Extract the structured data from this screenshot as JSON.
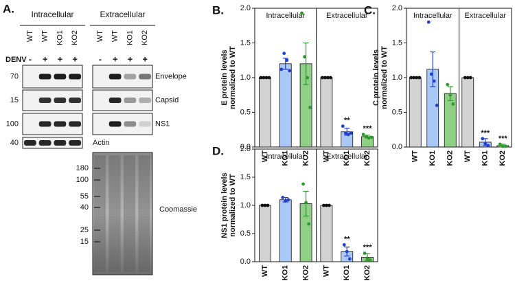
{
  "blot": {
    "panel_label": "A.",
    "groups": [
      {
        "name": "Intracellular",
        "lanes": [
          "WT",
          "WT",
          "KO1",
          "KO2"
        ]
      },
      {
        "name": "Extracellular",
        "lanes": [
          "WT",
          "WT",
          "KO1",
          "KO2"
        ]
      }
    ],
    "treatment": {
      "name": "DENV",
      "signs": [
        "-",
        "+",
        "+",
        "+"
      ]
    },
    "rows": [
      {
        "marker": "70",
        "name": "Envelope"
      },
      {
        "marker": "15",
        "name": "Capsid"
      },
      {
        "marker": "100",
        "name": "NS1"
      },
      {
        "marker": "40",
        "name": "Actin"
      }
    ],
    "stain": {
      "name": "Coomassie",
      "markers": [
        "180",
        "100",
        "55",
        "40",
        "25",
        "15"
      ]
    }
  },
  "chart_data": [
    {
      "type": "bar",
      "label": "B.",
      "ylabel": [
        "E protein levels",
        "normalized to WT"
      ],
      "ylim": [
        0,
        2
      ],
      "yticks": [
        {
          "value": 0,
          "label": "0.0"
        },
        0.5,
        {
          "value": 1,
          "label": "1.0"
        },
        1.5,
        {
          "value": 2,
          "label": "2.0"
        }
      ],
      "groups": [
        {
          "name": "Intracellular",
          "bars": [
            {
              "category": "WT",
              "value": 1.0,
              "points": [
                1,
                1,
                1,
                1
              ],
              "color": "#d3d3d3",
              "point_color": "#111111"
            },
            {
              "category": "KO1",
              "value": 1.2,
              "error": 0.08,
              "points": [
                1.12,
                1.35,
                1.25,
                1.1
              ],
              "color": "#a9c8f5",
              "point_color": "#1f3fd1"
            },
            {
              "category": "KO2",
              "value": 1.2,
              "error": 0.3,
              "points": [
                1.93,
                1.3,
                1.0,
                0.57
              ],
              "color": "#8fcf86",
              "point_color": "#2e9a2e"
            }
          ]
        },
        {
          "name": "Extracellular",
          "bars": [
            {
              "category": "WT",
              "value": 1.0,
              "points": [
                1,
                1,
                1,
                1
              ],
              "color": "#d3d3d3",
              "point_color": "#111111"
            },
            {
              "category": "KO1",
              "value": 0.22,
              "error": 0.05,
              "points": [
                0.3,
                0.2,
                0.18,
                0.2
              ],
              "color": "#a9c8f5",
              "point_color": "#1f3fd1",
              "annotation": "**"
            },
            {
              "category": "KO2",
              "value": 0.15,
              "error": 0.02,
              "points": [
                0.18,
                0.15,
                0.13,
                0.14
              ],
              "color": "#8fcf86",
              "point_color": "#2e9a2e",
              "annotation": "***"
            }
          ]
        }
      ]
    },
    {
      "type": "bar",
      "label": "C.",
      "ylabel": [
        "C protein levels",
        "normalized to WT"
      ],
      "ylim": [
        0,
        2
      ],
      "yticks": [
        {
          "value": 0,
          "label": "0.0"
        },
        0.5,
        {
          "value": 1,
          "label": "1.0"
        },
        1.5,
        {
          "value": 2,
          "label": "2.0"
        }
      ],
      "groups": [
        {
          "name": "Intracellular",
          "bars": [
            {
              "category": "WT",
              "value": 1.0,
              "points": [
                1,
                1,
                1,
                1
              ],
              "color": "#d3d3d3",
              "point_color": "#111111"
            },
            {
              "category": "KO1",
              "value": 1.12,
              "error": 0.25,
              "points": [
                1.8,
                1.05,
                0.95,
                0.6
              ],
              "color": "#a9c8f5",
              "point_color": "#1f3fd1"
            },
            {
              "category": "KO2",
              "value": 0.77,
              "error": 0.1,
              "points": [
                0.9,
                0.75,
                0.62
              ],
              "color": "#8fcf86",
              "point_color": "#2e9a2e"
            }
          ]
        },
        {
          "name": "Extracellular",
          "bars": [
            {
              "category": "WT",
              "value": 1.0,
              "points": [
                1,
                1,
                1
              ],
              "color": "#d3d3d3",
              "point_color": "#111111"
            },
            {
              "category": "KO1",
              "value": 0.07,
              "error": 0.05,
              "points": [
                0.12,
                0.05,
                0.02
              ],
              "color": "#a9c8f5",
              "point_color": "#1f3fd1",
              "annotation": "***"
            },
            {
              "category": "KO2",
              "value": 0.02,
              "error": 0.02,
              "points": [
                0.04,
                0.01,
                0.01
              ],
              "color": "#8fcf86",
              "point_color": "#2e9a2e",
              "annotation": "***"
            }
          ]
        }
      ]
    },
    {
      "type": "bar",
      "label": "D.",
      "ylabel": [
        "NS1 protein levels",
        "normalized to WT"
      ],
      "ylim": [
        0,
        2
      ],
      "yticks": [
        {
          "value": 0,
          "label": "0.0"
        },
        0.5,
        {
          "value": 1,
          "label": "1.0"
        },
        1.5,
        {
          "value": 2,
          "label": "2.0"
        }
      ],
      "groups": [
        {
          "name": "Intracellular",
          "bars": [
            {
              "category": "WT",
              "value": 1.0,
              "points": [
                1,
                1,
                1
              ],
              "color": "#d3d3d3",
              "point_color": "#111111"
            },
            {
              "category": "KO1",
              "value": 1.1,
              "error": 0.04,
              "points": [
                1.14,
                1.08,
                1.1
              ],
              "color": "#a9c8f5",
              "point_color": "#1f3fd1"
            },
            {
              "category": "KO2",
              "value": 1.03,
              "error": 0.22,
              "points": [
                1.38,
                1.05,
                0.67
              ],
              "color": "#8fcf86",
              "point_color": "#2e9a2e"
            }
          ]
        },
        {
          "name": "Extracellular",
          "bars": [
            {
              "category": "WT",
              "value": 1.0,
              "points": [
                1,
                1,
                1
              ],
              "color": "#d3d3d3",
              "point_color": "#111111"
            },
            {
              "category": "KO1",
              "value": 0.18,
              "error": 0.08,
              "points": [
                0.3,
                0.18,
                0.05
              ],
              "color": "#a9c8f5",
              "point_color": "#1f3fd1",
              "annotation": "**"
            },
            {
              "category": "KO2",
              "value": 0.08,
              "error": 0.06,
              "points": [
                0.15,
                0.05,
                0.03
              ],
              "color": "#8fcf86",
              "point_color": "#2e9a2e",
              "annotation": "***"
            }
          ]
        }
      ]
    }
  ]
}
